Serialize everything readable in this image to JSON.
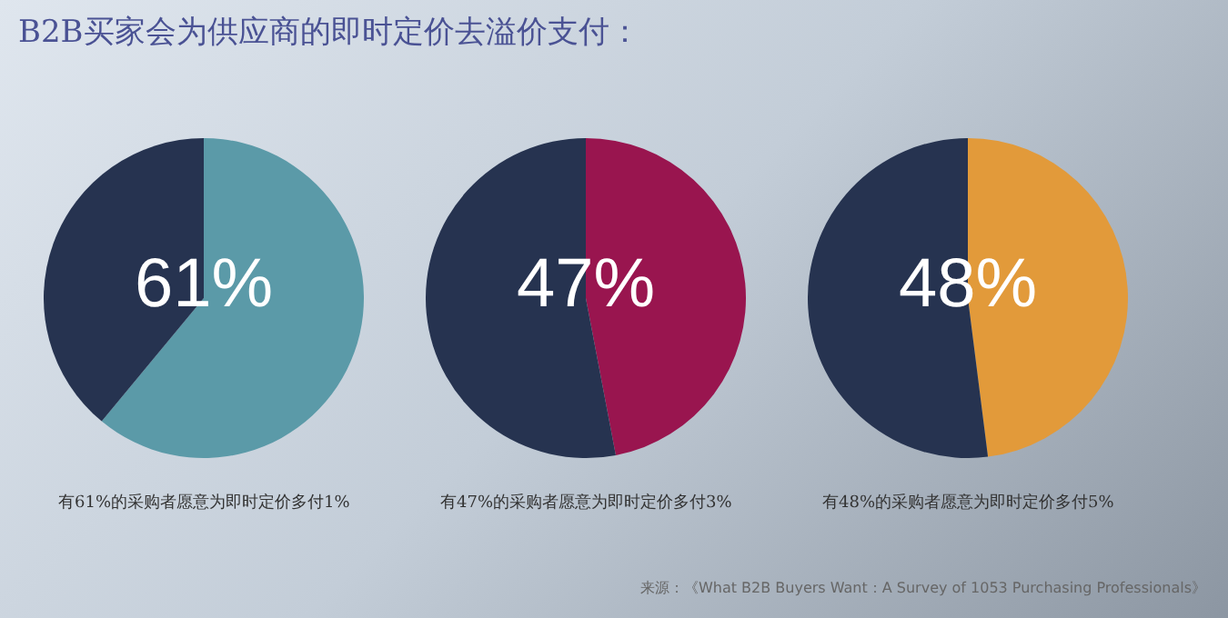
{
  "chart_data": [
    {
      "type": "pie",
      "title": "B2B买家会为供应商的即时定价去溢价支付：",
      "categories": [
        null,
        null
      ],
      "values": [
        61,
        39
      ],
      "colors": [
        "#5b9aa8",
        "#263350"
      ],
      "value_labels": [
        "61%",
        null
      ],
      "annotations": [
        "有61%的采购者愿意为即时定价多付1%"
      ]
    },
    {
      "type": "pie",
      "categories": [
        null,
        null
      ],
      "values": [
        47,
        53
      ],
      "colors": [
        "#99154f",
        "#263350"
      ],
      "value_labels": [
        "47%",
        null
      ],
      "annotations": [
        "有47%的采购者愿意为即时定价多付3%"
      ]
    },
    {
      "type": "pie",
      "categories": [
        null,
        null
      ],
      "values": [
        48,
        52
      ],
      "colors": [
        "#e29a3a",
        "#263350"
      ],
      "value_labels": [
        "48%",
        null
      ],
      "annotations": [
        "有48%的采购者愿意为即时定价多付5%",
        "来源：《What B2B Buyers Want：A Survey of 1053 Purchasing Professionals》"
      ]
    }
  ]
}
